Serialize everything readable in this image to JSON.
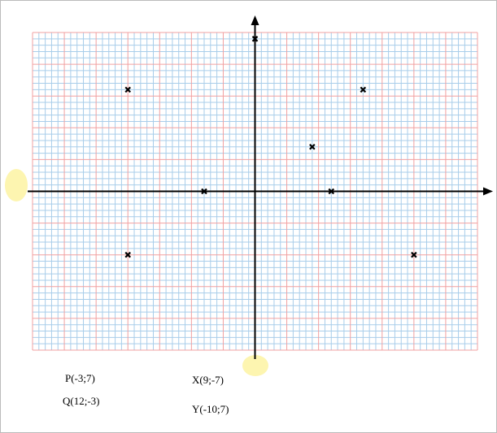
{
  "chart_data": {
    "type": "scatter",
    "x": [
      -20,
      0,
      17,
      9,
      -8,
      12,
      -20,
      25
    ],
    "values": [
      16,
      24,
      16,
      7,
      0,
      0,
      -10,
      -10
    ],
    "color": "#000000",
    "xlim": [
      -35,
      35
    ],
    "ylim": [
      -25,
      25
    ],
    "grid": true,
    "annotations": [
      "P(-3;7)",
      "Q(12;-3)",
      "X(9;-7)",
      "Y(-10;7)"
    ]
  }
}
